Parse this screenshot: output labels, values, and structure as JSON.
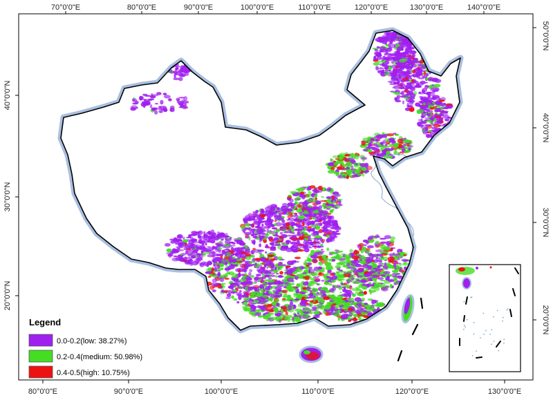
{
  "axes": {
    "top": [
      "70°0'0\"E",
      "80°0'0\"E",
      "90°0'0\"E",
      "100°0'0\"E",
      "110°0'0\"E",
      "120°0'0\"E",
      "130°0'0\"E",
      "140°0'0\"E"
    ],
    "bottom": [
      "80°0'0\"E",
      "90°0'0\"E",
      "100°0'0\"E",
      "110°0'0\"E",
      "120°0'0\"E",
      "130°0'0\"E"
    ],
    "left": [
      "40°0'0\"N",
      "30°0'0\"N",
      "20°0'0\"N"
    ],
    "right": [
      "50°0'0\"N",
      "40°0'0\"N",
      "30°0'0\"N",
      "20°0'0\"N"
    ]
  },
  "legend": {
    "title": "Legend",
    "items": [
      {
        "label": "0.0-0.2(low: 38.27%)",
        "color": "#a020f0",
        "share_percent": 38.27
      },
      {
        "label": "0.2-0.4(medium: 50.98%)",
        "color": "#44dd22",
        "share_percent": 50.98
      },
      {
        "label": "0.4-0.5(high: 10.75%)",
        "color": "#ee1111",
        "share_percent": 10.75
      }
    ]
  },
  "colors": {
    "boundary_glow": "#a9bfe0",
    "boundary_line": "#000000",
    "coast_line": "#7fa7c9"
  }
}
